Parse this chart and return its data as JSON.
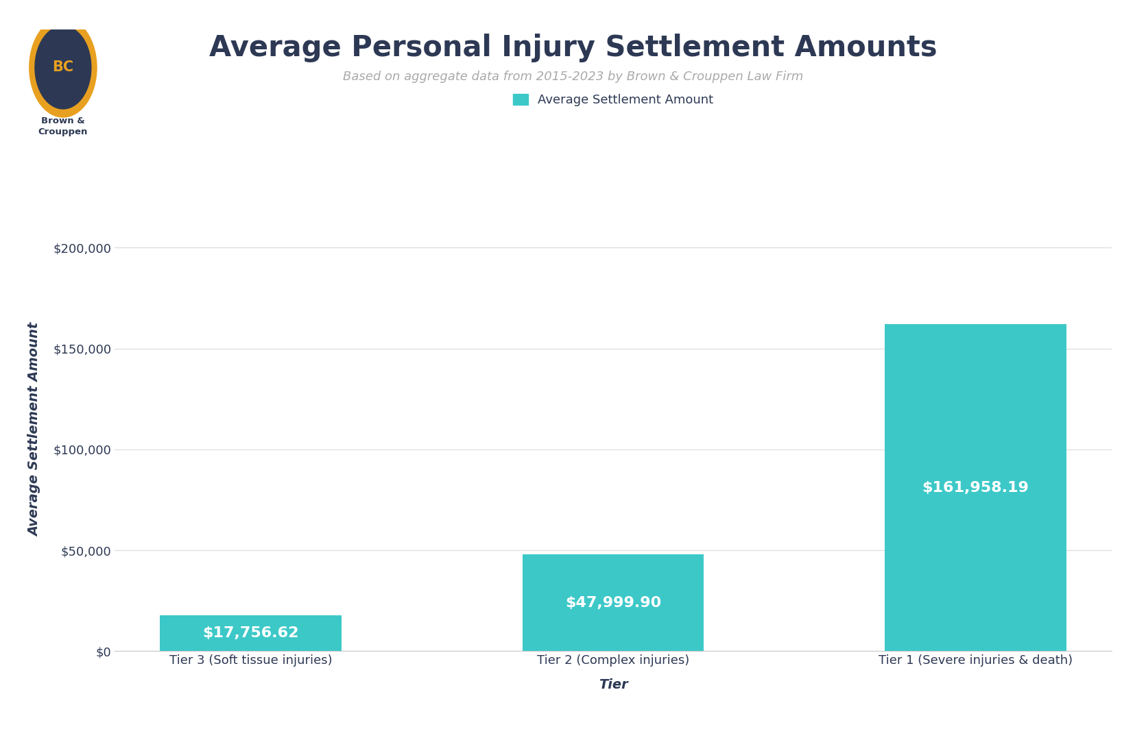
{
  "title": "Average Personal Injury Settlement Amounts",
  "subtitle": "Based on aggregate data from 2015-2023 by Brown & Crouppen Law Firm",
  "xlabel": "Tier",
  "ylabel": "Average Settlement Amount",
  "categories": [
    "Tier 3 (Soft tissue injuries)",
    "Tier 2 (Complex injuries)",
    "Tier 1 (Severe injuries & death)"
  ],
  "values": [
    17756.62,
    47999.9,
    161958.19
  ],
  "bar_labels": [
    "$17,756.62",
    "$47,999.90",
    "$161,958.19"
  ],
  "bar_color": "#3DC8C8",
  "bar_label_color": "#ffffff",
  "legend_label": "Average Settlement Amount",
  "legend_color": "#3DC8C8",
  "yticks": [
    0,
    50000,
    100000,
    150000,
    200000
  ],
  "ytick_labels": [
    "$0",
    "$50,000",
    "$100,000",
    "$150,000",
    "$200,000"
  ],
  "ylim": [
    0,
    220000
  ],
  "title_color": "#2d3954",
  "subtitle_color": "#aaaaaa",
  "ylabel_color": "#2d3954",
  "xlabel_color": "#2d3954",
  "tick_color": "#2d3954",
  "background_color": "#ffffff",
  "grid_color": "#e0e0e0",
  "title_fontsize": 30,
  "subtitle_fontsize": 13,
  "axis_label_fontsize": 14,
  "tick_fontsize": 13,
  "bar_label_fontsize": 16,
  "legend_fontsize": 13,
  "logo_outer_color": "#E8A020",
  "logo_inner_color": "#2d3954",
  "logo_text_color": "#E8A020",
  "logo_text": "BC",
  "brand_name": "Brown &\nCrouppen"
}
